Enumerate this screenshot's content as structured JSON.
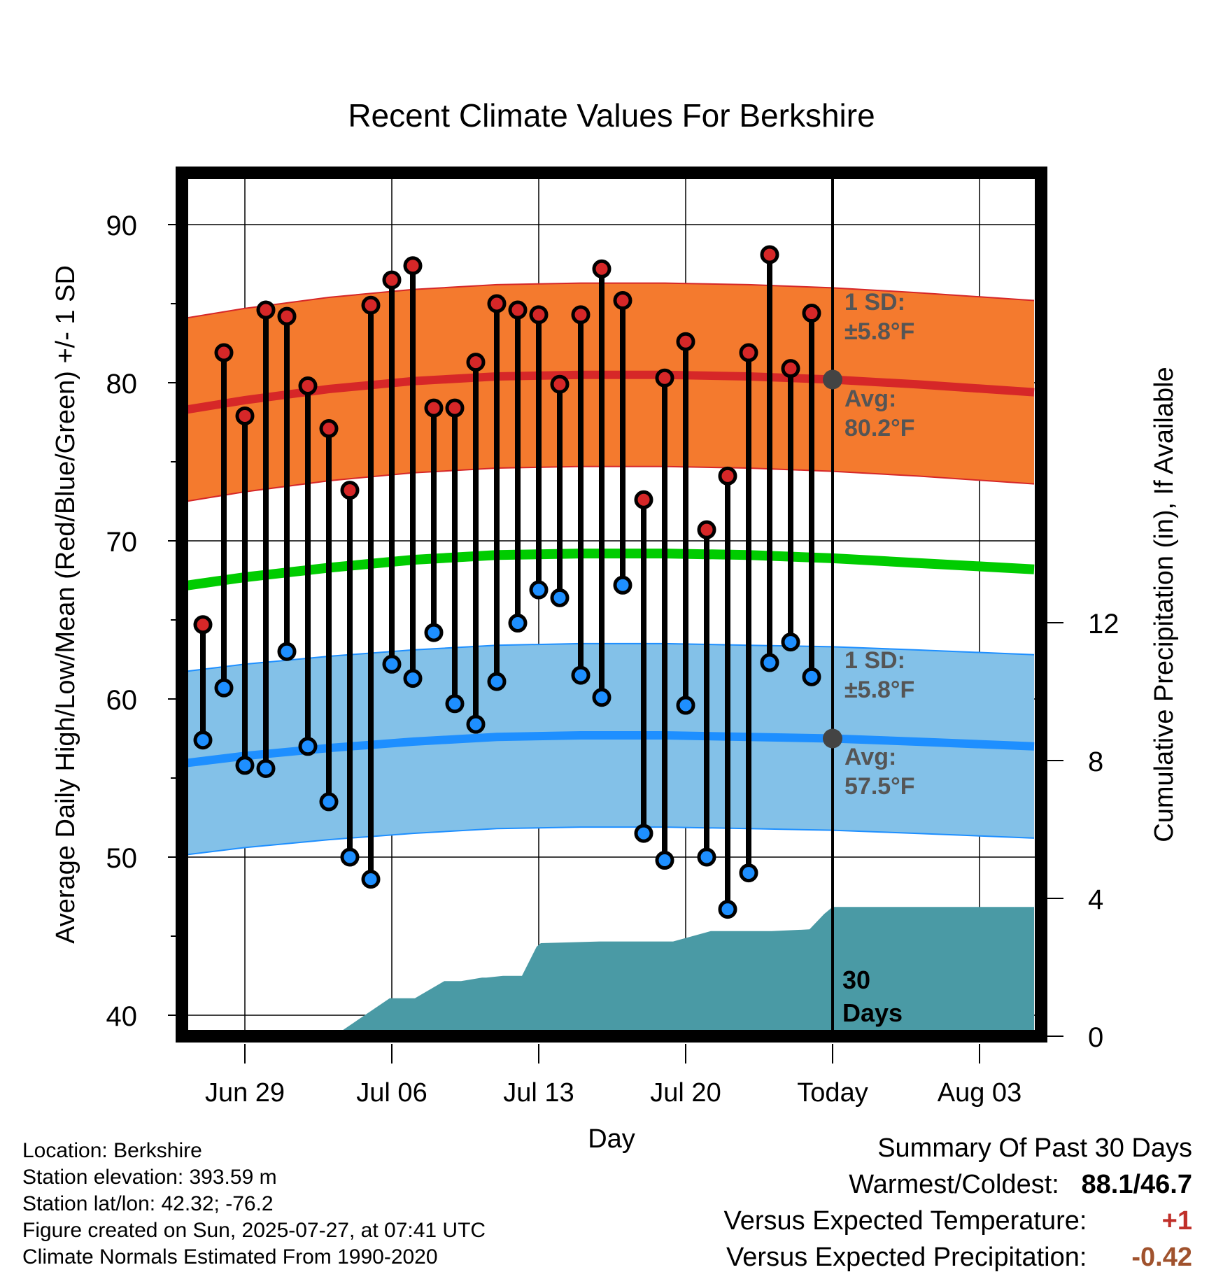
{
  "chart_data": {
    "type": "line",
    "title": "Recent Climate Values For Berkshire",
    "xlabel": "Day",
    "ylabel": "Average Daily High/Low/Mean (Red/Blue/Green) +/- 1 SD",
    "y2label": "Cumulative Precipitation (in), If Available",
    "ylim": [
      39,
      93.5
    ],
    "y2lim": [
      0,
      25
    ],
    "yticks": [
      40,
      50,
      60,
      70,
      80,
      90
    ],
    "y2ticks": [
      0,
      4,
      8,
      12
    ],
    "xlim": [
      -3.7,
      37.6
    ],
    "x_tick_labels": [
      {
        "day": 0,
        "label": "Jun 29"
      },
      {
        "day": 7,
        "label": "Jul 06"
      },
      {
        "day": 14,
        "label": "Jul 13"
      },
      {
        "day": 21,
        "label": "Jul 20"
      },
      {
        "day": 28,
        "label": "Today"
      },
      {
        "day": 35,
        "label": "Aug 03"
      }
    ],
    "x_day_zero": "Jun 29",
    "dates": [
      "Jun 27",
      "Jun 28",
      "Jun 29",
      "Jun 30",
      "Jul 01",
      "Jul 02",
      "Jul 03",
      "Jul 04",
      "Jul 05",
      "Jul 06",
      "Jul 07",
      "Jul 08",
      "Jul 09",
      "Jul 10",
      "Jul 11",
      "Jul 12",
      "Jul 13",
      "Jul 14",
      "Jul 15",
      "Jul 16",
      "Jul 17",
      "Jul 18",
      "Jul 19",
      "Jul 20",
      "Jul 21",
      "Jul 22",
      "Jul 23",
      "Jul 24",
      "Jul 25",
      "Jul 26"
    ],
    "highs": [
      64.7,
      81.9,
      77.9,
      84.6,
      84.2,
      79.8,
      77.1,
      73.2,
      84.9,
      86.5,
      87.4,
      78.4,
      78.4,
      81.3,
      85.0,
      84.6,
      84.3,
      79.9,
      84.3,
      87.2,
      85.2,
      72.6,
      80.3,
      82.6,
      70.7,
      74.1,
      81.9,
      88.1,
      80.9,
      84.4
    ],
    "lows": [
      57.4,
      60.7,
      55.8,
      55.6,
      63.0,
      57.0,
      53.5,
      50.0,
      48.6,
      62.2,
      61.3,
      64.2,
      59.7,
      58.4,
      61.1,
      64.8,
      66.9,
      66.4,
      61.5,
      60.1,
      67.2,
      51.5,
      49.8,
      59.6,
      50.0,
      46.7,
      49.0,
      62.3,
      63.6,
      61.4
    ],
    "normal_x": [
      -3.7,
      0,
      4,
      8,
      12,
      16,
      20,
      24,
      28,
      32,
      37.6
    ],
    "normal_high": [
      78.1,
      78.9,
      79.6,
      80.1,
      80.4,
      80.5,
      80.5,
      80.4,
      80.2,
      79.9,
      79.4
    ],
    "normal_low": [
      55.8,
      56.4,
      56.9,
      57.3,
      57.6,
      57.7,
      57.7,
      57.6,
      57.5,
      57.3,
      57.0
    ],
    "normal_mean": [
      67.0,
      67.7,
      68.3,
      68.8,
      69.1,
      69.2,
      69.2,
      69.1,
      68.9,
      68.6,
      68.2
    ],
    "sd": 5.8,
    "precip_x": [
      2,
      2.8,
      3.4,
      4.6,
      6.9,
      7.1,
      8.1,
      9.5,
      10.3,
      11.3,
      11.5,
      12.3,
      13.2,
      13.9,
      14.1,
      16.9,
      19.9,
      20.4,
      21.9,
      22.2,
      24.0,
      25.1,
      26.9,
      27.6,
      28,
      37.6
    ],
    "precip_cum": [
      0.0,
      0.0,
      0.15,
      0.15,
      1.1,
      1.1,
      1.1,
      1.6,
      1.6,
      1.7,
      1.7,
      1.75,
      1.75,
      2.6,
      2.7,
      2.75,
      2.75,
      2.75,
      3.0,
      3.05,
      3.05,
      3.05,
      3.1,
      3.55,
      3.75,
      3.75
    ],
    "annotations": {
      "high_sd_line1": "1 SD:",
      "high_sd_line2": "±5.8°F",
      "high_avg_line1": "Avg:",
      "high_avg_line2": "80.2°F",
      "low_sd_line1": "1 SD:",
      "low_sd_line2": "±5.8°F",
      "low_avg_line1": "Avg:",
      "low_avg_line2": "57.5°F",
      "days_line1": "30",
      "days_line2": "Days"
    },
    "colors": {
      "high_band": "#f47a2e",
      "high_line": "#d62728",
      "low_band": "#83c1e8",
      "low_line": "#1e8fff",
      "mean_line": "#00cc00",
      "precip": "#4a9aa5",
      "high_dot": "#d62728",
      "low_dot": "#1e8fff",
      "today_dot": "#444444"
    },
    "grid": true
  },
  "info": {
    "location": "Location: Berkshire",
    "elevation": "Station elevation: 393.59 m",
    "latlon": "Station lat/lon: 42.32; -76.2",
    "created": "Figure created on Sun, 2025-07-27, at 07:41 UTC",
    "normals": "Climate Normals Estimated From 1990-2020"
  },
  "summary": {
    "title": "Summary Of Past 30 Days",
    "warm_cold_label": "Warmest/Coldest:",
    "warm_cold_value": "88.1/46.7",
    "temp_label": "Versus Expected Temperature:",
    "temp_value": "+1",
    "precip_label": "Versus Expected Precipitation:",
    "precip_value": "-0.42",
    "temp_color": "#c0302a",
    "precip_color": "#a0522d"
  }
}
